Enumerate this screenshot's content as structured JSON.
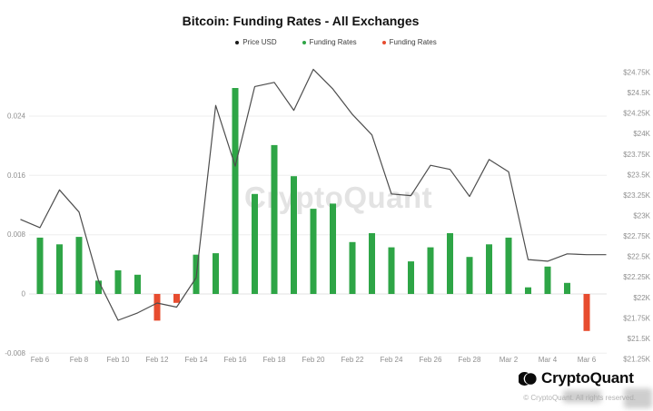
{
  "header": {
    "title": "Bitcoin: Funding Rates - All Exchanges"
  },
  "legend": {
    "items": [
      {
        "label": "Price USD",
        "color": "#1a1a1a"
      },
      {
        "label": "Funding Rates",
        "color": "#2ea546"
      },
      {
        "label": "Funding Rates",
        "color": "#e74c2f"
      }
    ]
  },
  "watermark": {
    "text": "CryptoQuant"
  },
  "footer": {
    "brand": "CryptoQuant",
    "copyright": "© CryptoQuant. All rights reserved."
  },
  "colors": {
    "bar_positive": "#2ea546",
    "bar_negative": "#e74c2f",
    "price_line": "#4d4d4d",
    "grid": "#eeeeee",
    "zero_line": "#e2e2e2",
    "axis_text": "#8f8f8f"
  },
  "chart_data": {
    "type": "combo",
    "title": "Bitcoin: Funding Rates - All Exchanges",
    "grid": true,
    "legend_position": "top-center",
    "x": [
      "Feb 5",
      "Feb 6",
      "Feb 7",
      "Feb 8",
      "Feb 9",
      "Feb 10",
      "Feb 11",
      "Feb 12",
      "Feb 13",
      "Feb 14",
      "Feb 15",
      "Feb 16",
      "Feb 17",
      "Feb 18",
      "Feb 19",
      "Feb 20",
      "Feb 21",
      "Feb 22",
      "Feb 23",
      "Feb 24",
      "Feb 25",
      "Feb 26",
      "Feb 27",
      "Feb 28",
      "Mar 1",
      "Mar 2",
      "Mar 3",
      "Mar 4",
      "Mar 5",
      "Mar 6",
      "Mar 7"
    ],
    "x_tick_labels": [
      "Feb 6",
      "Feb 8",
      "Feb 10",
      "Feb 12",
      "Feb 14",
      "Feb 16",
      "Feb 18",
      "Feb 20",
      "Feb 22",
      "Feb 24",
      "Feb 26",
      "Feb 28",
      "Mar 2",
      "Mar 4",
      "Mar 6"
    ],
    "left_axis": {
      "series": "Funding Rates",
      "ticks": [
        0.024,
        0.016,
        0.008,
        0,
        -0.008
      ],
      "range": [
        -0.008,
        0.0305
      ]
    },
    "right_axis": {
      "series": "Price USD",
      "tick_labels": [
        "$24.75K",
        "$24.5K",
        "$24.25K",
        "$24K",
        "$23.75K",
        "$23.5K",
        "$23.25K",
        "$23K",
        "$22.75K",
        "$22.5K",
        "$22.25K",
        "$22K",
        "$21.75K",
        "$21.5K",
        "$21.25K"
      ],
      "tick_values_k": [
        24.75,
        24.5,
        24.25,
        24.0,
        23.75,
        23.5,
        23.25,
        23.0,
        22.75,
        22.5,
        22.25,
        22.0,
        21.75,
        21.5,
        21.25
      ]
    },
    "series": [
      {
        "name": "Price USD",
        "type": "line",
        "axis": "right",
        "unit": "K USD",
        "values": [
          22.96,
          22.86,
          23.32,
          23.05,
          22.21,
          21.73,
          21.82,
          21.94,
          21.89,
          22.25,
          24.35,
          23.61,
          24.58,
          24.63,
          24.29,
          24.79,
          24.55,
          24.24,
          23.99,
          23.27,
          23.25,
          23.62,
          23.57,
          23.24,
          23.69,
          23.54,
          22.47,
          22.45,
          22.54,
          22.53,
          22.53
        ]
      },
      {
        "name": "Funding Rates",
        "type": "bar",
        "axis": "left",
        "values": [
          null,
          0.0076,
          0.0067,
          0.0077,
          0.0018,
          0.0032,
          0.0026,
          -0.0036,
          -0.0012,
          0.0053,
          0.0055,
          0.0278,
          0.0135,
          0.0201,
          0.0159,
          0.0115,
          0.0122,
          0.007,
          0.0082,
          0.0063,
          0.0044,
          0.0063,
          0.0082,
          0.005,
          0.0067,
          0.0076,
          0.0009,
          0.0037,
          0.0015,
          -0.005,
          null
        ]
      }
    ]
  }
}
